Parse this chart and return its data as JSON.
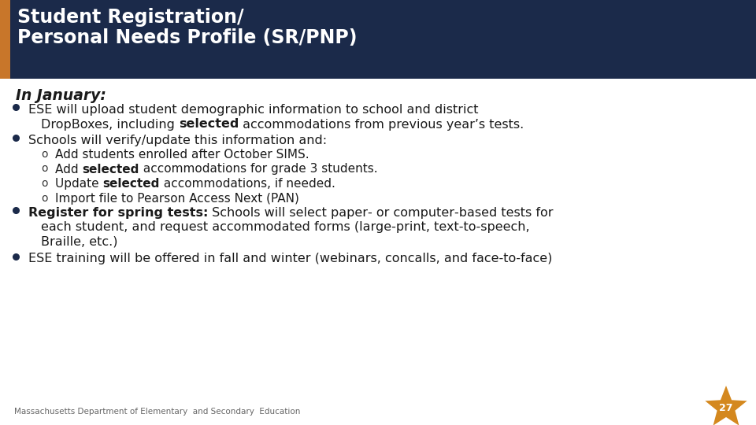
{
  "title_line1": "Student Registration/",
  "title_line2": "Personal Needs Profile (SR/PNP)",
  "header_bg": "#1b2a4a",
  "header_accent": "#c8762a",
  "header_text_color": "#ffffff",
  "body_bg": "#ffffff",
  "body_text_color": "#1a1a1a",
  "bullet_color": "#1b2a4a",
  "footer_text": "Massachusetts Department of Elementary  and Secondary  Education",
  "footer_color": "#666666",
  "page_number": "27",
  "star_color": "#d4881e",
  "section_heading": "In January:",
  "bullets": [
    {
      "type": "main",
      "indent": 0,
      "parts": [
        {
          "text": "ESE will upload student demographic information to school and district\nDropBoxes, including ",
          "bold": false
        },
        {
          "text": "selected",
          "bold": true
        },
        {
          "text": " accommodations from previous year’s tests.",
          "bold": false
        }
      ]
    },
    {
      "type": "main",
      "indent": 0,
      "parts": [
        {
          "text": "Schools will verify/update this information and:",
          "bold": false
        }
      ]
    },
    {
      "type": "sub",
      "indent": 1,
      "parts": [
        {
          "text": "Add students enrolled after October SIMS.",
          "bold": false
        }
      ]
    },
    {
      "type": "sub",
      "indent": 1,
      "parts": [
        {
          "text": "Add ",
          "bold": false
        },
        {
          "text": "selected",
          "bold": true
        },
        {
          "text": " accommodations for grade 3 students.",
          "bold": false
        }
      ]
    },
    {
      "type": "sub",
      "indent": 1,
      "parts": [
        {
          "text": "Update ",
          "bold": false
        },
        {
          "text": "selected",
          "bold": true
        },
        {
          "text": " accommodations, if needed.",
          "bold": false
        }
      ]
    },
    {
      "type": "sub",
      "indent": 1,
      "parts": [
        {
          "text": "Import file to Pearson Access Next (PAN)",
          "bold": false
        }
      ]
    },
    {
      "type": "main",
      "indent": 0,
      "parts": [
        {
          "text": "Register for spring tests:",
          "bold": true
        },
        {
          "text": " Schools will select paper‐ or computer‐based tests for\neach student, and request accommodated forms (large‐print, text‐to‐speech,\nBraille, etc.)",
          "bold": false
        }
      ]
    },
    {
      "type": "main",
      "indent": 0,
      "parts": [
        {
          "text": "ESE training will be offered in fall and winter (webinars, concalls, and face‐to‐face)",
          "bold": false
        }
      ]
    }
  ]
}
